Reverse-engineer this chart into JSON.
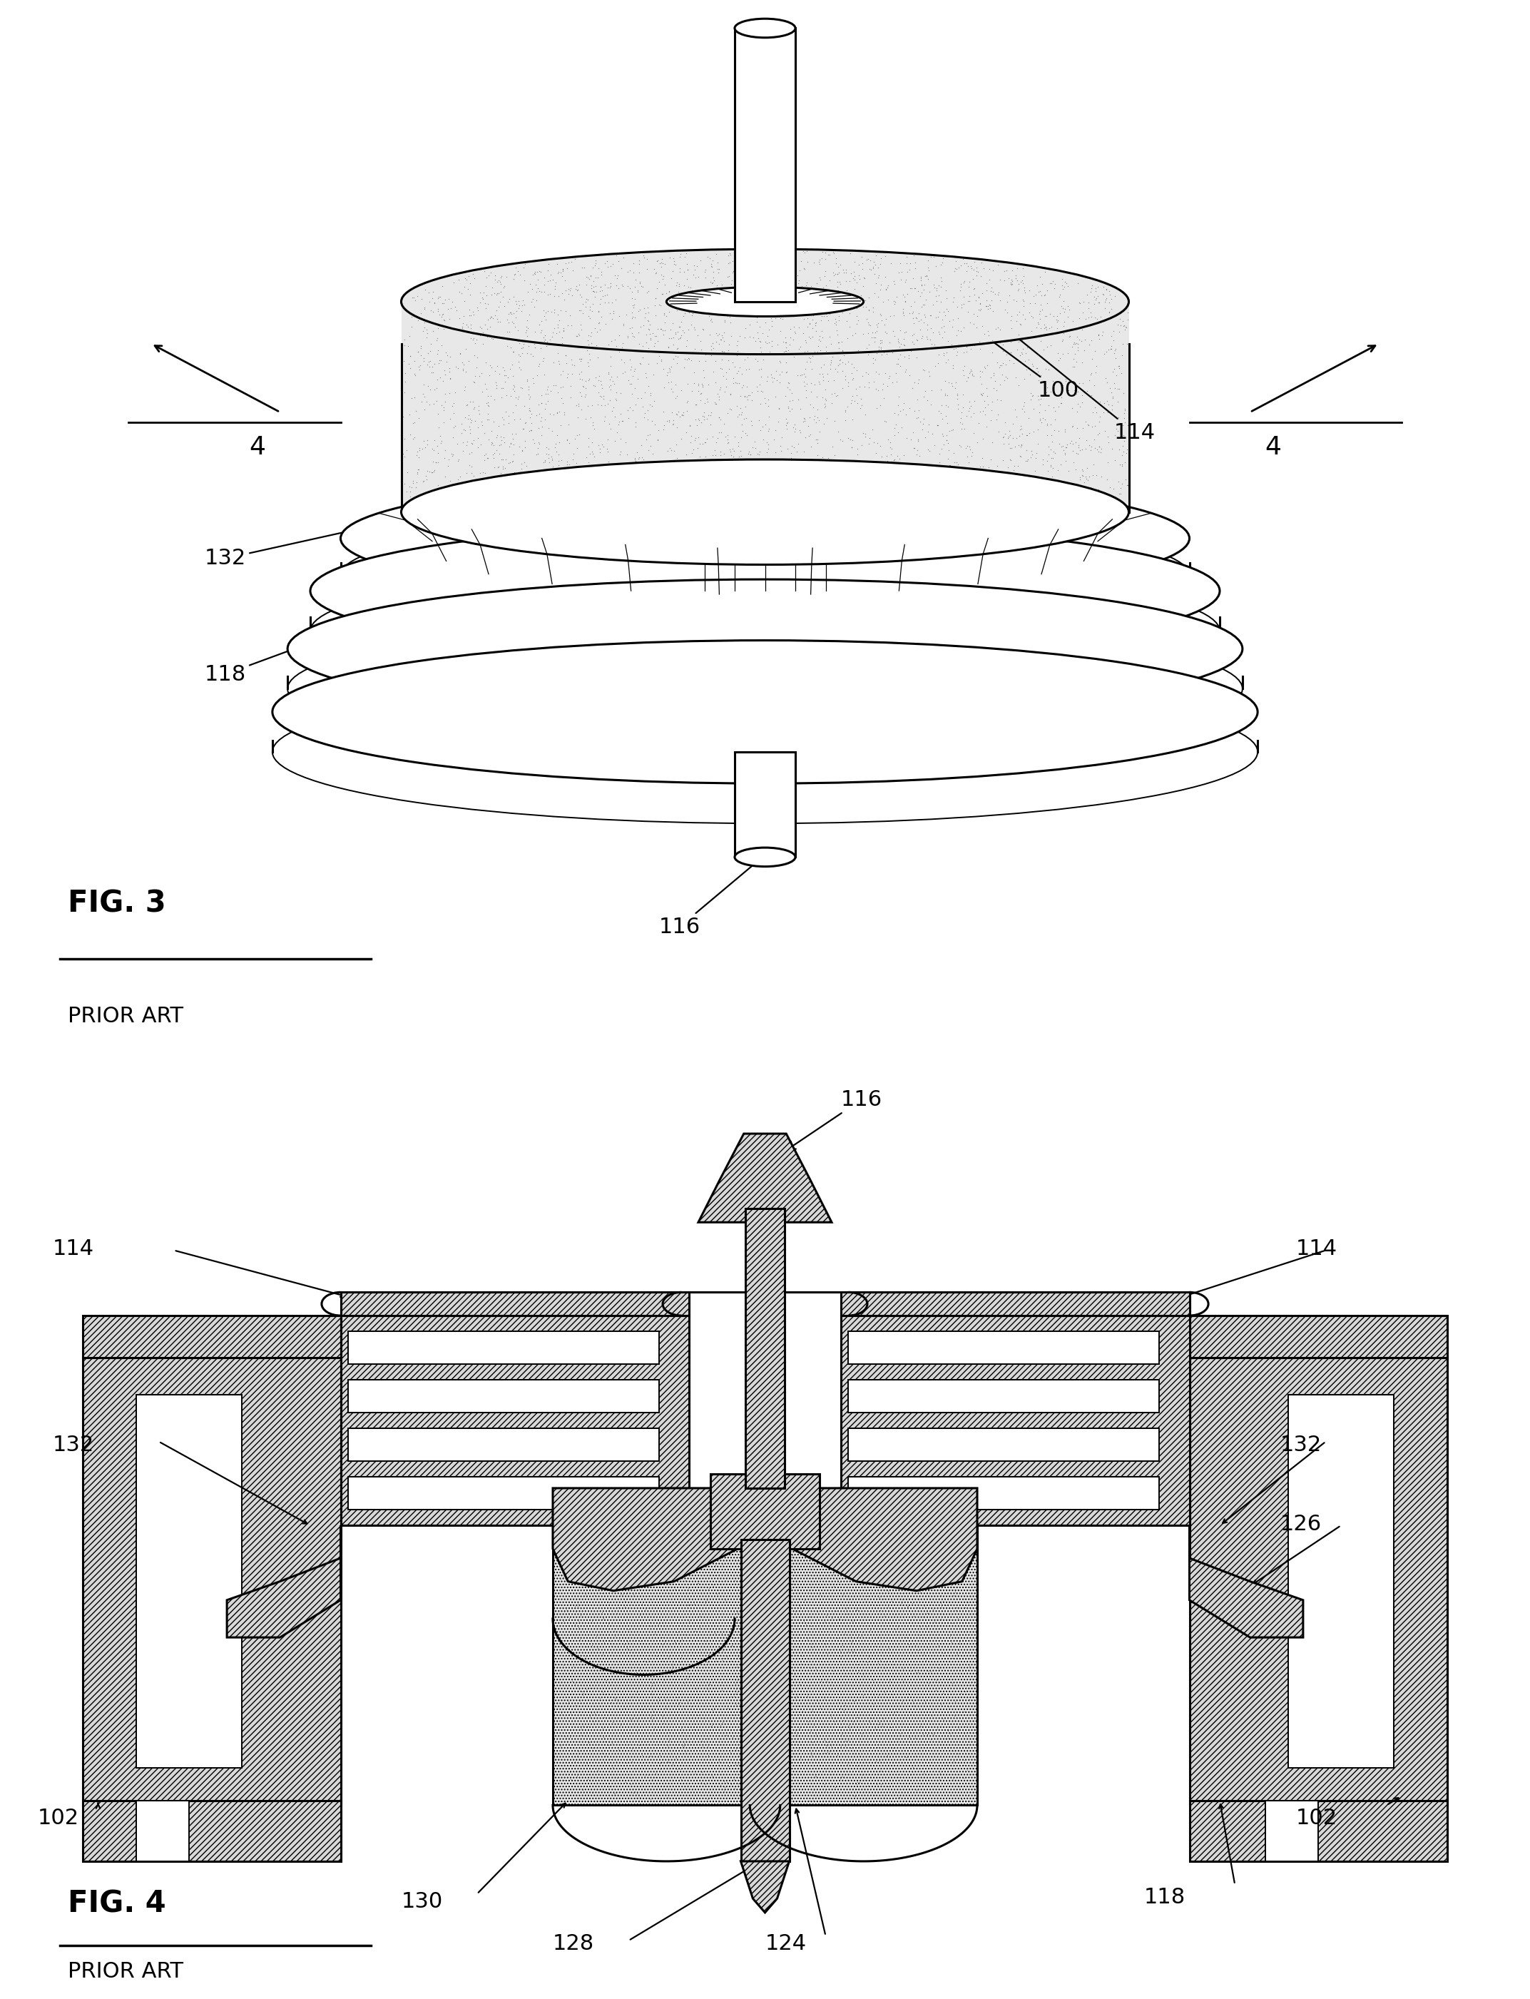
{
  "background": "#ffffff",
  "lw": 2.2,
  "lw2": 1.4,
  "label_fs": 22,
  "title_fs": 30,
  "fig3_title": "FIG. 3",
  "fig3_sub": "PRIOR ART",
  "fig4_title": "FIG. 4",
  "fig4_sub": "PRIOR ART",
  "hatch_fc": "#d8d8d8",
  "stipple_fc": "#e8e8e8"
}
